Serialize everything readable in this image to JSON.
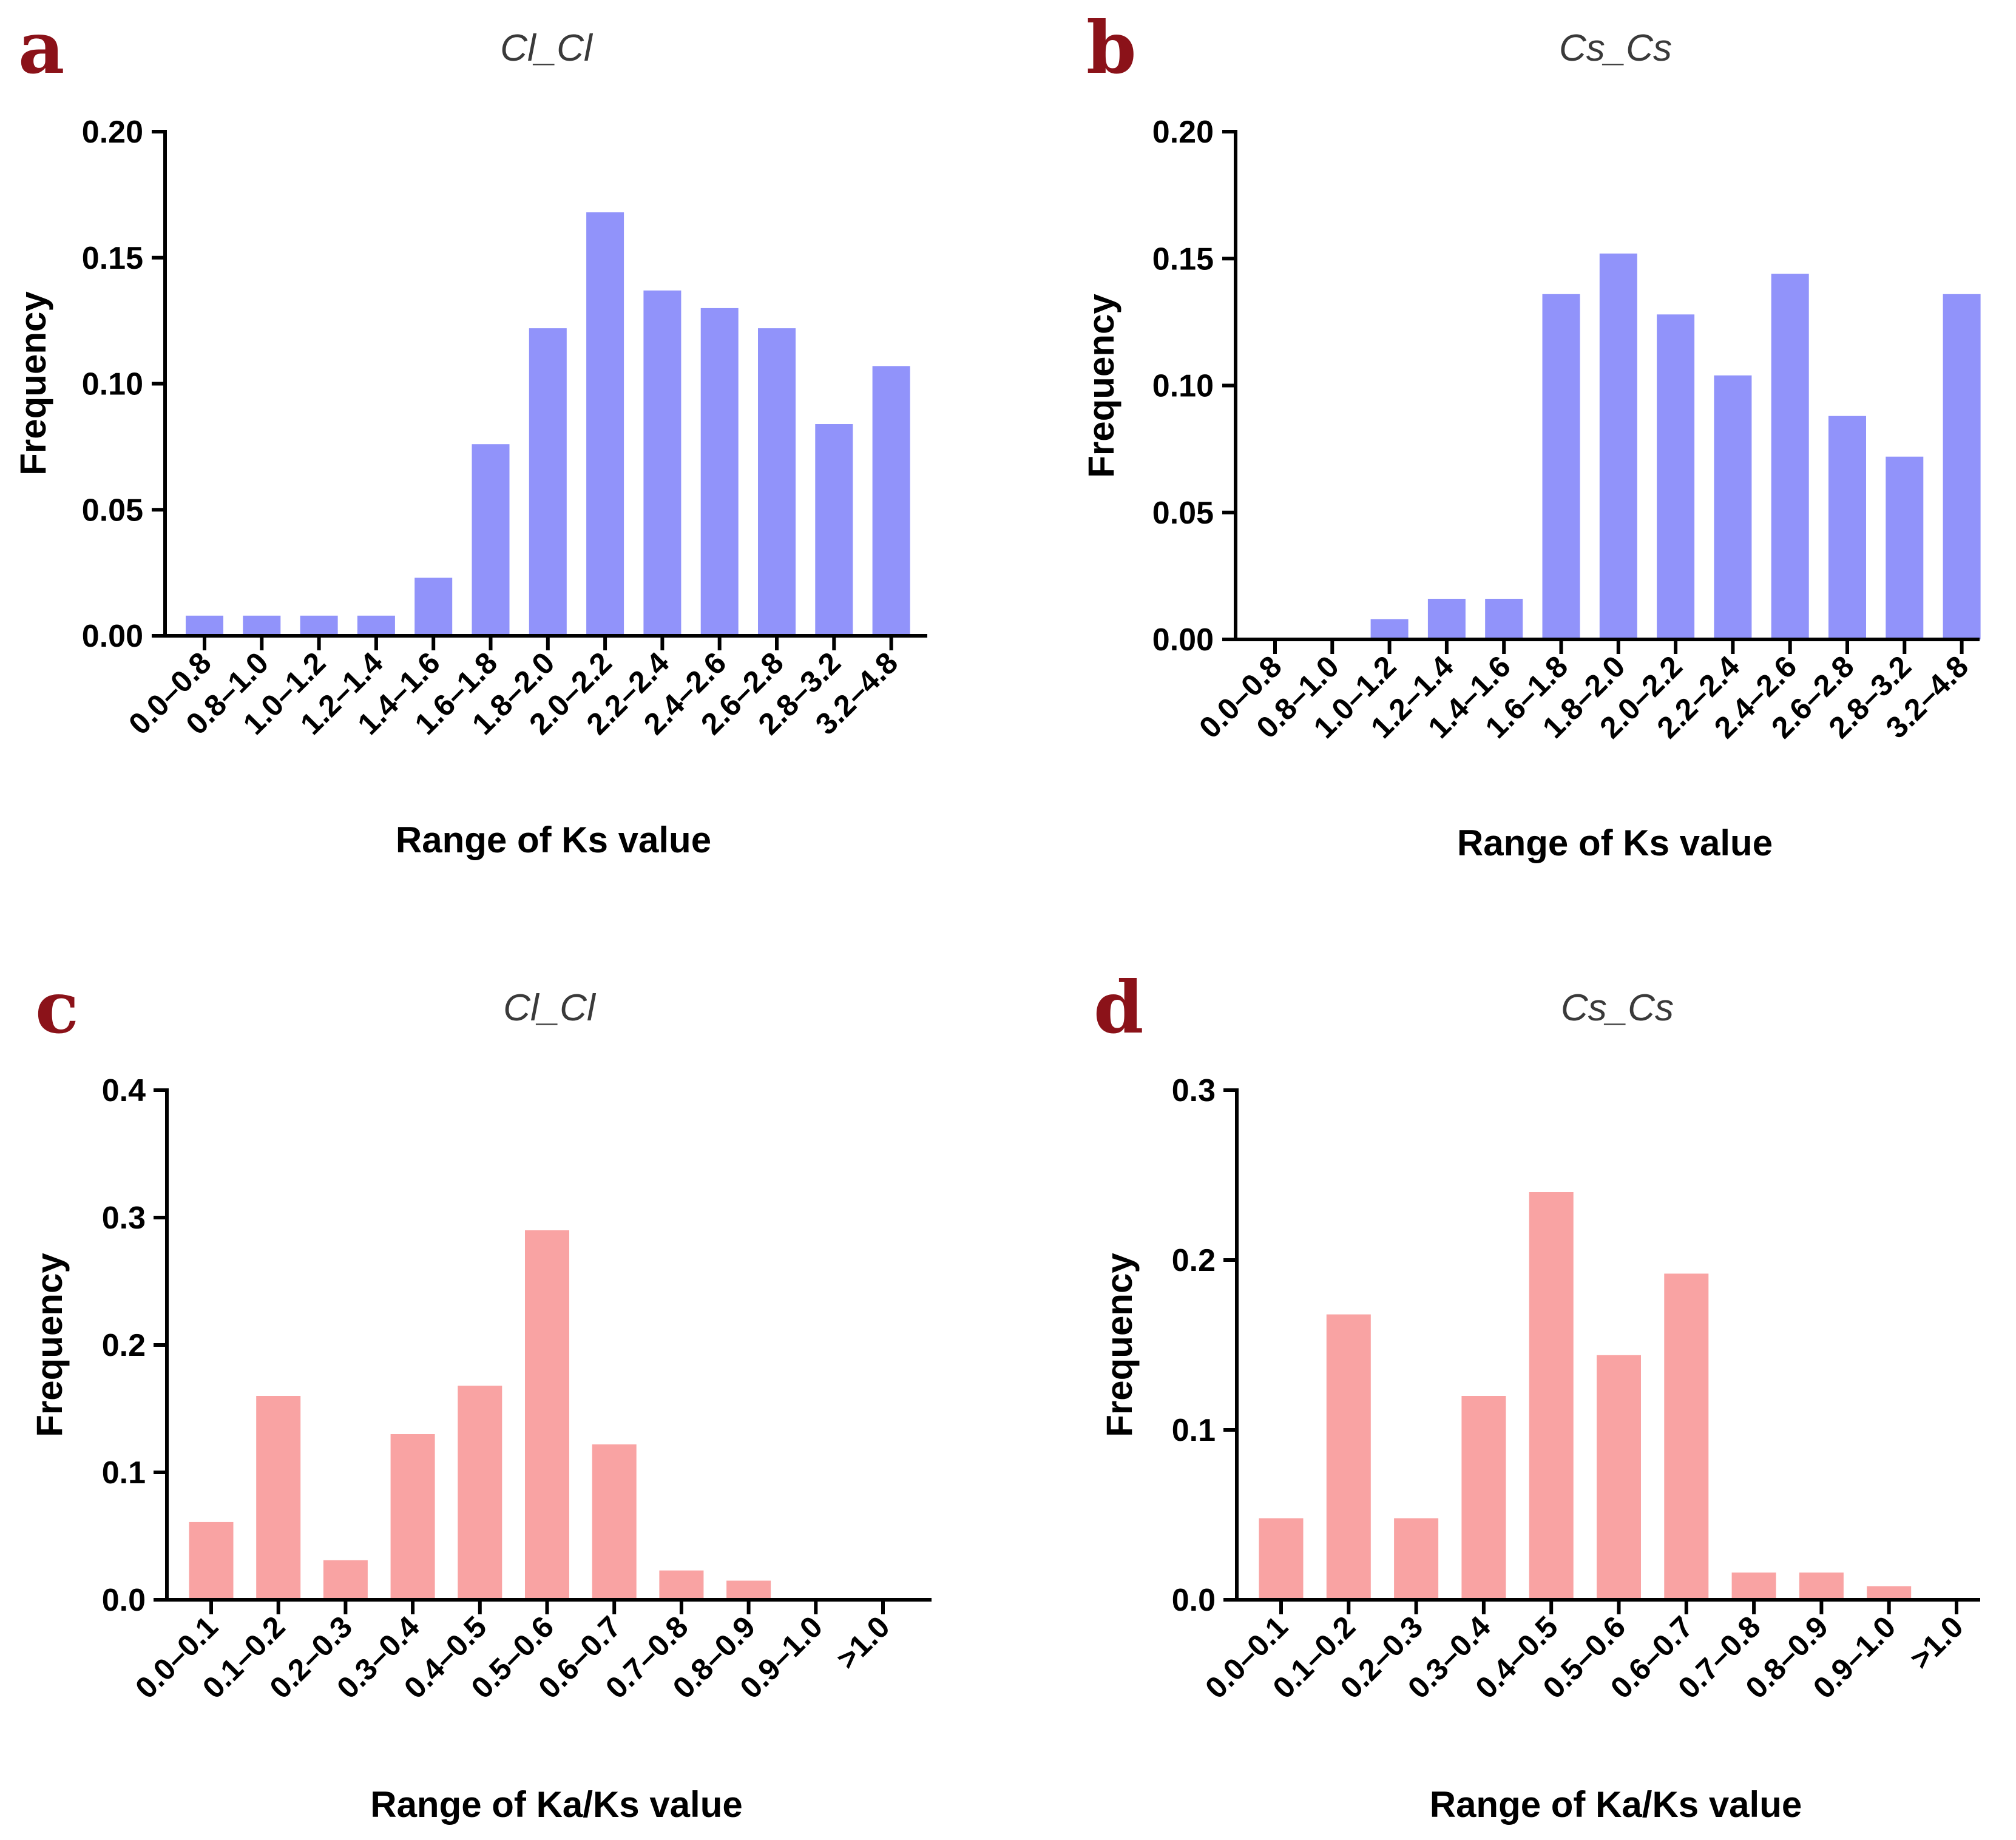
{
  "colors": {
    "ks_bar": "#9193fa",
    "kaks_bar": "#f9a3a3",
    "panel_letter": "#8b1219"
  },
  "chart_data": [
    {
      "id": "a",
      "panel_label": "a",
      "type": "bar",
      "title": "Cl_Cl",
      "xlabel": "Range of Ks value",
      "ylabel": "Frequency",
      "ylim": [
        0,
        0.2
      ],
      "yticks": [
        "0.00",
        "0.05",
        "0.10",
        "0.15",
        "0.20"
      ],
      "ytick_values": [
        0,
        0.05,
        0.1,
        0.15,
        0.2
      ],
      "categories": [
        "0.0–0.8",
        "0.8–1.0",
        "1.0–1.2",
        "1.2–1.4",
        "1.4–1.6",
        "1.6–1.8",
        "1.8–2.0",
        "2.0–2.2",
        "2.2–2.4",
        "2.4–2.6",
        "2.6–2.8",
        "2.8–3.2",
        "3.2–4.8"
      ],
      "values": [
        0.008,
        0.008,
        0.008,
        0.008,
        0.023,
        0.076,
        0.122,
        0.168,
        0.137,
        0.13,
        0.122,
        0.084,
        0.107
      ],
      "color_key": "ks_bar"
    },
    {
      "id": "b",
      "panel_label": "b",
      "type": "bar",
      "title": "Cs_Cs",
      "xlabel": "Range of Ks value",
      "ylabel": "Frequency",
      "ylim": [
        0,
        0.2
      ],
      "yticks": [
        "0.00",
        "0.05",
        "0.10",
        "0.15",
        "0.20"
      ],
      "ytick_values": [
        0,
        0.05,
        0.1,
        0.15,
        0.2
      ],
      "categories": [
        "0.0–0.8",
        "0.8–1.0",
        "1.0–1.2",
        "1.2–1.4",
        "1.4–1.6",
        "1.6–1.8",
        "1.8–2.0",
        "2.0–2.2",
        "2.2–2.4",
        "2.4–2.6",
        "2.6–2.8",
        "2.8–3.2",
        "3.2–4.8"
      ],
      "values": [
        0,
        0,
        0.008,
        0.016,
        0.016,
        0.136,
        0.152,
        0.128,
        0.104,
        0.144,
        0.088,
        0.072,
        0.136
      ],
      "color_key": "ks_bar"
    },
    {
      "id": "c",
      "panel_label": "c",
      "type": "bar",
      "title": "Cl_Cl",
      "xlabel": "Range of Ka/Ks value",
      "ylabel": "Frequency",
      "ylim": [
        0,
        0.4
      ],
      "yticks": [
        "0.0",
        "0.1",
        "0.2",
        "0.3",
        "0.4"
      ],
      "ytick_values": [
        0,
        0.1,
        0.2,
        0.3,
        0.4
      ],
      "categories": [
        "0.0–0.1",
        "0.1–0.2",
        "0.2–0.3",
        "0.3–0.4",
        "0.4–0.5",
        "0.5–0.6",
        "0.6–0.7",
        "0.7–0.8",
        "0.8–0.9",
        "0.9–1.0",
        ">1.0"
      ],
      "values": [
        0.061,
        0.16,
        0.031,
        0.13,
        0.168,
        0.29,
        0.122,
        0.023,
        0.015,
        0,
        0
      ],
      "color_key": "kaks_bar"
    },
    {
      "id": "d",
      "panel_label": "d",
      "type": "bar",
      "title": "Cs_Cs",
      "xlabel": "Range of Ka/Ks value",
      "ylabel": "Frequency",
      "ylim": [
        0,
        0.3
      ],
      "yticks": [
        "0.0",
        "0.1",
        "0.2",
        "0.3"
      ],
      "ytick_values": [
        0,
        0.1,
        0.2,
        0.3
      ],
      "categories": [
        "0.0–0.1",
        "0.1–0.2",
        "0.2–0.3",
        "0.3–0.4",
        "0.4–0.5",
        "0.5–0.6",
        "0.6–0.7",
        "0.7–0.8",
        "0.8–0.9",
        "0.9–1.0",
        ">1.0"
      ],
      "values": [
        0.048,
        0.168,
        0.048,
        0.12,
        0.24,
        0.144,
        0.192,
        0.016,
        0.016,
        0.008,
        0
      ],
      "color_key": "kaks_bar"
    }
  ]
}
